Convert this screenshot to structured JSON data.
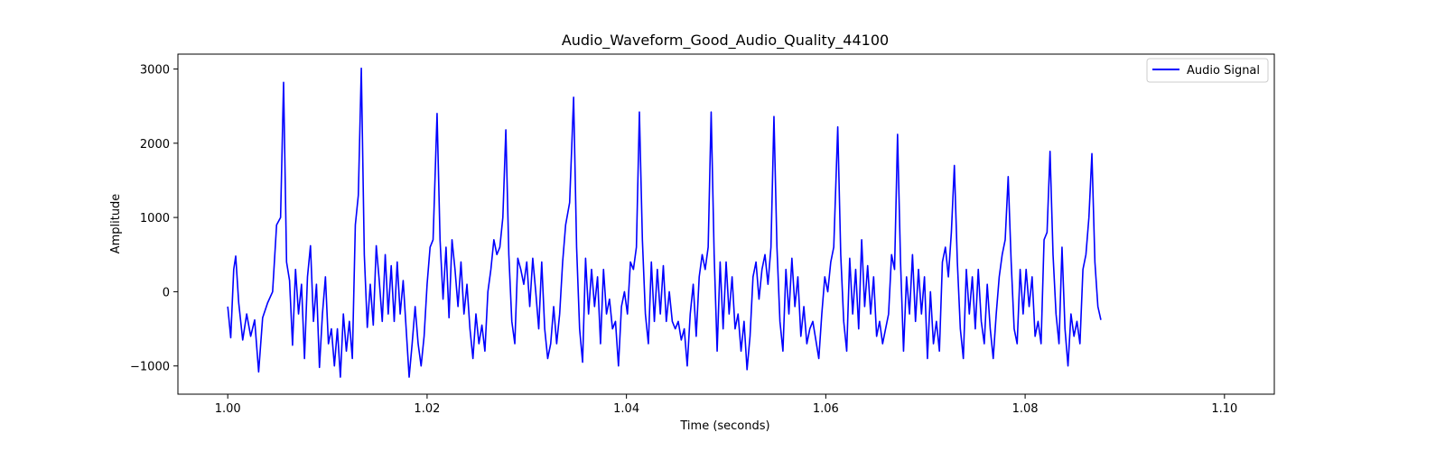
{
  "chart_data": {
    "type": "line",
    "title": "Audio_Waveform_Good_Audio_Quality_44100",
    "xlabel": "Time (seconds)",
    "ylabel": "Amplitude",
    "xlim": [
      0.995,
      1.105
    ],
    "ylim": [
      -1380,
      3200
    ],
    "grid": false,
    "legend_position": "top-right",
    "x_ticks": [
      1.0,
      1.02,
      1.04,
      1.06,
      1.08,
      1.1
    ],
    "x_tick_labels": [
      "1.00",
      "1.02",
      "1.04",
      "1.06",
      "1.08",
      "1.10"
    ],
    "y_ticks": [
      -1000,
      0,
      1000,
      2000,
      3000
    ],
    "y_tick_labels": [
      "−1000",
      "0",
      "1000",
      "2000",
      "3000"
    ],
    "series": [
      {
        "name": "Audio Signal",
        "color": "#0000ff",
        "points": [
          [
            1.0,
            -200
          ],
          [
            1.0003,
            -620
          ],
          [
            1.0006,
            300
          ],
          [
            1.0008,
            480
          ],
          [
            1.0011,
            -150
          ],
          [
            1.0015,
            -650
          ],
          [
            1.0019,
            -300
          ],
          [
            1.0023,
            -600
          ],
          [
            1.0027,
            -380
          ],
          [
            1.0031,
            -1080
          ],
          [
            1.0035,
            -350
          ],
          [
            1.004,
            -150
          ],
          [
            1.0045,
            0
          ],
          [
            1.0049,
            900
          ],
          [
            1.0053,
            1000
          ],
          [
            1.0056,
            2820
          ],
          [
            1.0059,
            400
          ],
          [
            1.0062,
            150
          ],
          [
            1.0065,
            -720
          ],
          [
            1.0068,
            300
          ],
          [
            1.0071,
            -300
          ],
          [
            1.0074,
            100
          ],
          [
            1.0077,
            -900
          ],
          [
            1.008,
            200
          ],
          [
            1.0083,
            620
          ],
          [
            1.0086,
            -400
          ],
          [
            1.0089,
            100
          ],
          [
            1.0092,
            -1020
          ],
          [
            1.0095,
            -300
          ],
          [
            1.0098,
            200
          ],
          [
            1.0101,
            -700
          ],
          [
            1.0104,
            -500
          ],
          [
            1.0107,
            -1000
          ],
          [
            1.011,
            -500
          ],
          [
            1.0113,
            -1150
          ],
          [
            1.0116,
            -300
          ],
          [
            1.0119,
            -800
          ],
          [
            1.0122,
            -400
          ],
          [
            1.0125,
            -900
          ],
          [
            1.0128,
            900
          ],
          [
            1.0131,
            1300
          ],
          [
            1.0134,
            3010
          ],
          [
            1.0137,
            500
          ],
          [
            1.014,
            -480
          ],
          [
            1.0143,
            100
          ],
          [
            1.0146,
            -450
          ],
          [
            1.0149,
            620
          ],
          [
            1.0152,
            150
          ],
          [
            1.0155,
            -400
          ],
          [
            1.0158,
            500
          ],
          [
            1.0161,
            -300
          ],
          [
            1.0164,
            350
          ],
          [
            1.0167,
            -400
          ],
          [
            1.017,
            400
          ],
          [
            1.0173,
            -300
          ],
          [
            1.0176,
            150
          ],
          [
            1.0179,
            -500
          ],
          [
            1.0182,
            -1150
          ],
          [
            1.0185,
            -700
          ],
          [
            1.0188,
            -200
          ],
          [
            1.0191,
            -700
          ],
          [
            1.0194,
            -1000
          ],
          [
            1.0197,
            -600
          ],
          [
            1.02,
            100
          ],
          [
            1.0203,
            600
          ],
          [
            1.0206,
            700
          ],
          [
            1.021,
            2400
          ],
          [
            1.0213,
            700
          ],
          [
            1.0216,
            -100
          ],
          [
            1.0219,
            600
          ],
          [
            1.0222,
            -350
          ],
          [
            1.0225,
            700
          ],
          [
            1.0228,
            300
          ],
          [
            1.0231,
            -200
          ],
          [
            1.0234,
            400
          ],
          [
            1.0237,
            -300
          ],
          [
            1.024,
            100
          ],
          [
            1.0243,
            -500
          ],
          [
            1.0246,
            -900
          ],
          [
            1.0249,
            -300
          ],
          [
            1.0252,
            -700
          ],
          [
            1.0255,
            -450
          ],
          [
            1.0258,
            -800
          ],
          [
            1.0261,
            0
          ],
          [
            1.0264,
            300
          ],
          [
            1.0267,
            700
          ],
          [
            1.027,
            500
          ],
          [
            1.0273,
            600
          ],
          [
            1.0276,
            1000
          ],
          [
            1.0279,
            2180
          ],
          [
            1.0282,
            500
          ],
          [
            1.0285,
            -400
          ],
          [
            1.0288,
            -700
          ],
          [
            1.0291,
            450
          ],
          [
            1.0294,
            300
          ],
          [
            1.0297,
            100
          ],
          [
            1.03,
            400
          ],
          [
            1.0303,
            -200
          ],
          [
            1.0306,
            450
          ],
          [
            1.0309,
            0
          ],
          [
            1.0312,
            -500
          ],
          [
            1.0315,
            400
          ],
          [
            1.0318,
            -500
          ],
          [
            1.0321,
            -900
          ],
          [
            1.0324,
            -700
          ],
          [
            1.0327,
            -200
          ],
          [
            1.033,
            -700
          ],
          [
            1.0333,
            -300
          ],
          [
            1.0336,
            400
          ],
          [
            1.0339,
            900
          ],
          [
            1.0343,
            1200
          ],
          [
            1.0347,
            2620
          ],
          [
            1.035,
            600
          ],
          [
            1.0353,
            -500
          ],
          [
            1.0356,
            -950
          ],
          [
            1.0359,
            450
          ],
          [
            1.0362,
            -300
          ],
          [
            1.0365,
            300
          ],
          [
            1.0368,
            -200
          ],
          [
            1.0371,
            200
          ],
          [
            1.0374,
            -700
          ],
          [
            1.0377,
            300
          ],
          [
            1.038,
            -300
          ],
          [
            1.0383,
            -100
          ],
          [
            1.0386,
            -500
          ],
          [
            1.0389,
            -400
          ],
          [
            1.0392,
            -1000
          ],
          [
            1.0395,
            -200
          ],
          [
            1.0398,
            0
          ],
          [
            1.0401,
            -300
          ],
          [
            1.0404,
            400
          ],
          [
            1.0407,
            300
          ],
          [
            1.041,
            600
          ],
          [
            1.0413,
            2420
          ],
          [
            1.0416,
            700
          ],
          [
            1.0419,
            -300
          ],
          [
            1.0422,
            -700
          ],
          [
            1.0425,
            400
          ],
          [
            1.0428,
            -400
          ],
          [
            1.0431,
            300
          ],
          [
            1.0434,
            -300
          ],
          [
            1.0437,
            350
          ],
          [
            1.044,
            -400
          ],
          [
            1.0443,
            0
          ],
          [
            1.0446,
            -400
          ],
          [
            1.0449,
            -500
          ],
          [
            1.0452,
            -400
          ],
          [
            1.0455,
            -650
          ],
          [
            1.0458,
            -500
          ],
          [
            1.0461,
            -1000
          ],
          [
            1.0464,
            -300
          ],
          [
            1.0467,
            100
          ],
          [
            1.047,
            -600
          ],
          [
            1.0473,
            200
          ],
          [
            1.0476,
            500
          ],
          [
            1.0479,
            300
          ],
          [
            1.0482,
            600
          ],
          [
            1.0485,
            2420
          ],
          [
            1.0488,
            500
          ],
          [
            1.0491,
            -800
          ],
          [
            1.0494,
            400
          ],
          [
            1.0497,
            -500
          ],
          [
            1.05,
            400
          ],
          [
            1.0503,
            -300
          ],
          [
            1.0506,
            200
          ],
          [
            1.0509,
            -500
          ],
          [
            1.0512,
            -300
          ],
          [
            1.0515,
            -800
          ],
          [
            1.0518,
            -400
          ],
          [
            1.0521,
            -1050
          ],
          [
            1.0524,
            -600
          ],
          [
            1.0527,
            200
          ],
          [
            1.053,
            400
          ],
          [
            1.0533,
            -100
          ],
          [
            1.0536,
            300
          ],
          [
            1.0539,
            500
          ],
          [
            1.0542,
            100
          ],
          [
            1.0545,
            600
          ],
          [
            1.0548,
            2360
          ],
          [
            1.0551,
            600
          ],
          [
            1.0554,
            -400
          ],
          [
            1.0557,
            -800
          ],
          [
            1.056,
            300
          ],
          [
            1.0563,
            -300
          ],
          [
            1.0566,
            450
          ],
          [
            1.0569,
            -200
          ],
          [
            1.0572,
            200
          ],
          [
            1.0575,
            -600
          ],
          [
            1.0578,
            -200
          ],
          [
            1.0581,
            -700
          ],
          [
            1.0584,
            -500
          ],
          [
            1.0587,
            -400
          ],
          [
            1.059,
            -650
          ],
          [
            1.0593,
            -900
          ],
          [
            1.0596,
            -300
          ],
          [
            1.0599,
            200
          ],
          [
            1.0602,
            0
          ],
          [
            1.0605,
            400
          ],
          [
            1.0608,
            600
          ],
          [
            1.0612,
            2220
          ],
          [
            1.0615,
            500
          ],
          [
            1.0618,
            -400
          ],
          [
            1.0621,
            -800
          ],
          [
            1.0624,
            450
          ],
          [
            1.0627,
            -300
          ],
          [
            1.063,
            300
          ],
          [
            1.0633,
            -500
          ],
          [
            1.0636,
            700
          ],
          [
            1.0639,
            -200
          ],
          [
            1.0642,
            350
          ],
          [
            1.0645,
            -300
          ],
          [
            1.0648,
            200
          ],
          [
            1.0651,
            -600
          ],
          [
            1.0654,
            -400
          ],
          [
            1.0657,
            -700
          ],
          [
            1.066,
            -500
          ],
          [
            1.0663,
            -300
          ],
          [
            1.0666,
            500
          ],
          [
            1.0669,
            300
          ],
          [
            1.0672,
            2120
          ],
          [
            1.0675,
            400
          ],
          [
            1.0678,
            -800
          ],
          [
            1.0681,
            200
          ],
          [
            1.0684,
            -300
          ],
          [
            1.0687,
            500
          ],
          [
            1.069,
            -400
          ],
          [
            1.0693,
            300
          ],
          [
            1.0696,
            -300
          ],
          [
            1.0699,
            200
          ],
          [
            1.0702,
            -900
          ],
          [
            1.0705,
            0
          ],
          [
            1.0708,
            -700
          ],
          [
            1.0711,
            -400
          ],
          [
            1.0714,
            -800
          ],
          [
            1.0717,
            400
          ],
          [
            1.072,
            600
          ],
          [
            1.0723,
            200
          ],
          [
            1.0726,
            800
          ],
          [
            1.0729,
            1700
          ],
          [
            1.0732,
            400
          ],
          [
            1.0735,
            -500
          ],
          [
            1.0738,
            -900
          ],
          [
            1.0741,
            300
          ],
          [
            1.0744,
            -300
          ],
          [
            1.0747,
            200
          ],
          [
            1.075,
            -500
          ],
          [
            1.0753,
            300
          ],
          [
            1.0756,
            -400
          ],
          [
            1.0759,
            -700
          ],
          [
            1.0762,
            100
          ],
          [
            1.0765,
            -500
          ],
          [
            1.0768,
            -900
          ],
          [
            1.0771,
            -300
          ],
          [
            1.0774,
            200
          ],
          [
            1.0777,
            500
          ],
          [
            1.078,
            700
          ],
          [
            1.0783,
            1550
          ],
          [
            1.0786,
            400
          ],
          [
            1.0789,
            -500
          ],
          [
            1.0792,
            -700
          ],
          [
            1.0795,
            300
          ],
          [
            1.0798,
            -300
          ],
          [
            1.0801,
            300
          ],
          [
            1.0804,
            -200
          ],
          [
            1.0807,
            200
          ],
          [
            1.081,
            -600
          ],
          [
            1.0813,
            -400
          ],
          [
            1.0816,
            -700
          ],
          [
            1.0819,
            700
          ],
          [
            1.0822,
            800
          ],
          [
            1.0825,
            1890
          ],
          [
            1.0828,
            500
          ],
          [
            1.0831,
            -300
          ],
          [
            1.0834,
            -700
          ],
          [
            1.0837,
            600
          ],
          [
            1.084,
            -500
          ],
          [
            1.0843,
            -1000
          ],
          [
            1.0846,
            -300
          ],
          [
            1.0849,
            -600
          ],
          [
            1.0852,
            -400
          ],
          [
            1.0855,
            -700
          ],
          [
            1.0858,
            300
          ],
          [
            1.0861,
            500
          ],
          [
            1.0864,
            1000
          ],
          [
            1.0867,
            1860
          ],
          [
            1.087,
            400
          ],
          [
            1.0873,
            -200
          ],
          [
            1.0876,
            -380
          ]
        ]
      }
    ]
  }
}
